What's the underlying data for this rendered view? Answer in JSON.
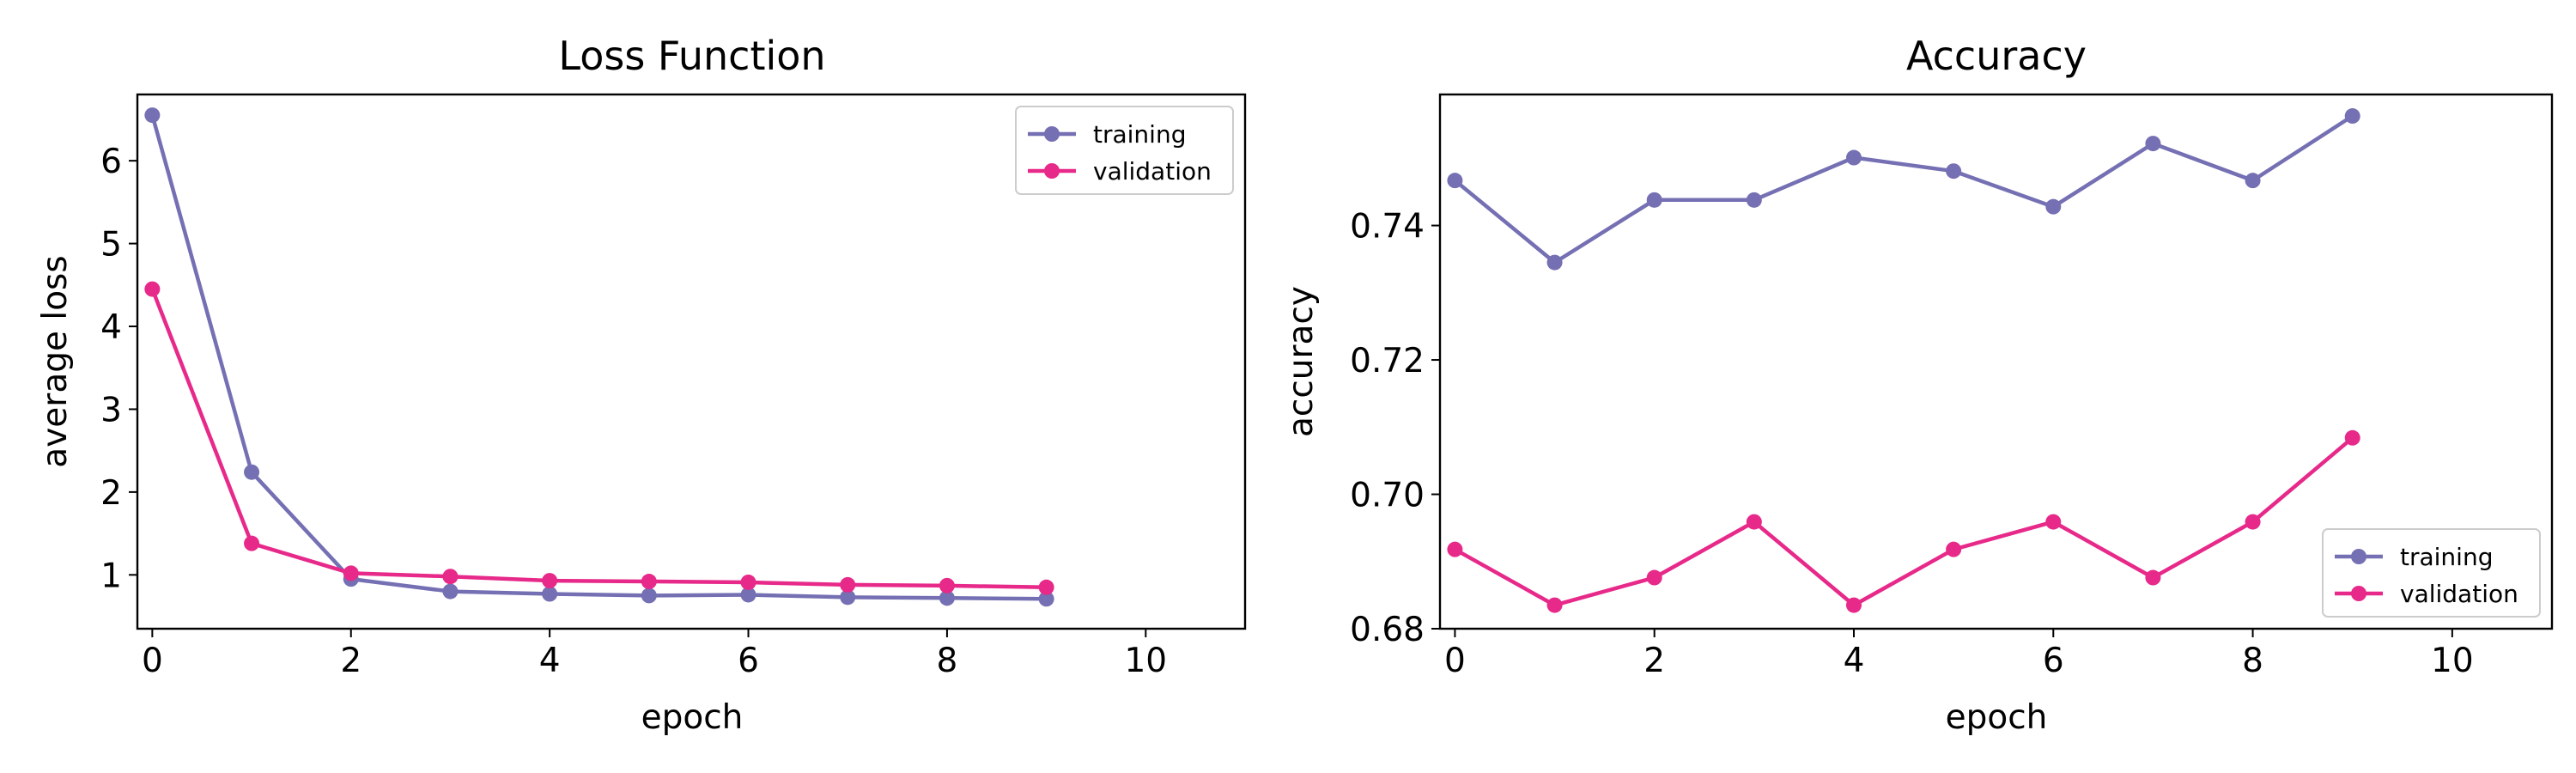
{
  "colors": {
    "training": "#7570b3",
    "validation": "#e7298a"
  },
  "chart_data": [
    {
      "type": "line",
      "title": "Loss Function",
      "xlabel": "epoch",
      "ylabel": "average loss",
      "xlim": [
        -0.15,
        11
      ],
      "ylim": [
        0.35,
        6.8
      ],
      "xticks": [
        0,
        2,
        4,
        6,
        8,
        10
      ],
      "yticks": [
        1,
        2,
        3,
        4,
        5,
        6
      ],
      "tick_decimals": 0,
      "legend_position": "top-right",
      "x": [
        0,
        1,
        2,
        3,
        4,
        5,
        6,
        7,
        8,
        9
      ],
      "series": [
        {
          "name": "training",
          "values": [
            6.55,
            2.24,
            0.95,
            0.8,
            0.77,
            0.75,
            0.76,
            0.73,
            0.72,
            0.71
          ]
        },
        {
          "name": "validation",
          "values": [
            4.45,
            1.38,
            1.02,
            0.98,
            0.93,
            0.92,
            0.91,
            0.88,
            0.87,
            0.85
          ]
        }
      ]
    },
    {
      "type": "line",
      "title": "Accuracy",
      "xlabel": "epoch",
      "ylabel": "accuracy",
      "xlim": [
        -0.15,
        11
      ],
      "ylim": [
        0.68,
        0.7595
      ],
      "xticks": [
        0,
        2,
        4,
        6,
        8,
        10
      ],
      "yticks": [
        0.68,
        0.7,
        0.72,
        0.74
      ],
      "tick_decimals": 2,
      "legend_position": "bottom-right",
      "x": [
        0,
        1,
        2,
        3,
        4,
        5,
        6,
        7,
        8,
        9
      ],
      "series": [
        {
          "name": "training",
          "values": [
            0.7467,
            0.7345,
            0.7438,
            0.7438,
            0.7501,
            0.7481,
            0.7428,
            0.7522,
            0.7467,
            0.7563
          ]
        },
        {
          "name": "validation",
          "values": [
            0.6918,
            0.6835,
            0.6876,
            0.6959,
            0.6835,
            0.6918,
            0.6959,
            0.6876,
            0.6959,
            0.7084
          ]
        }
      ]
    }
  ]
}
